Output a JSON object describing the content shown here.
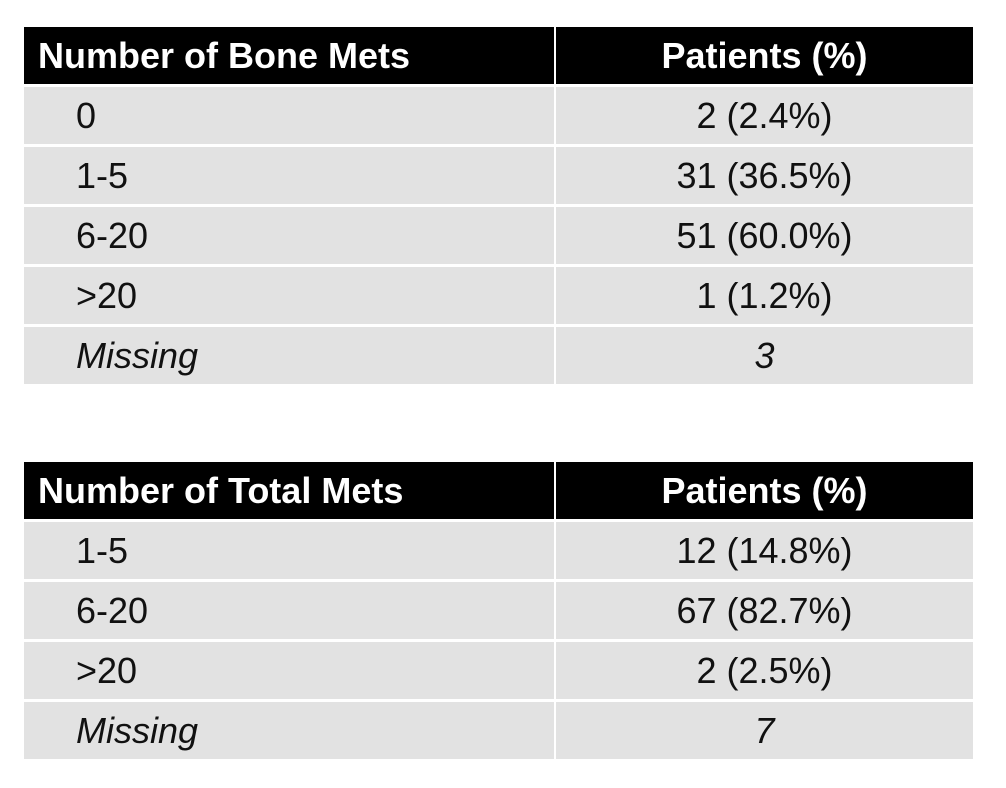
{
  "tables": [
    {
      "header": {
        "category": "Number of Bone Mets",
        "value": "Patients (%)"
      },
      "rows": [
        {
          "label": "0",
          "value": "2 (2.4%)"
        },
        {
          "label": "1-5",
          "value": "31 (36.5%)"
        },
        {
          "label": "6-20",
          "value": "51 (60.0%)"
        },
        {
          "label": ">20",
          "value": "1 (1.2%)"
        },
        {
          "label": "Missing",
          "value": "3"
        }
      ]
    },
    {
      "header": {
        "category": "Number of Total Mets",
        "value": "Patients (%)"
      },
      "rows": [
        {
          "label": "1-5",
          "value": "12 (14.8%)"
        },
        {
          "label": "6-20",
          "value": "67 (82.7%)"
        },
        {
          "label": ">20",
          "value": "2 (2.5%)"
        },
        {
          "label": "Missing",
          "value": "7"
        }
      ]
    }
  ]
}
